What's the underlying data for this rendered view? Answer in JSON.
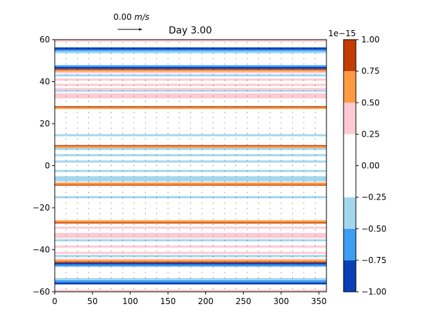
{
  "chart_data": {
    "type": "heatmap",
    "title": "Day 3.00",
    "xlabel": "",
    "ylabel": "",
    "xlim": [
      0,
      360
    ],
    "ylim": [
      -60,
      60
    ],
    "xticks": [
      0,
      50,
      100,
      150,
      200,
      250,
      300,
      350
    ],
    "yticks": [
      -60,
      -40,
      -20,
      0,
      20,
      40,
      60
    ],
    "x_tick_labels": [
      "0",
      "50",
      "100",
      "150",
      "200",
      "250",
      "300",
      "350"
    ],
    "y_tick_labels": [
      "−60",
      "−40",
      "−20",
      "0",
      "20",
      "40",
      "60"
    ],
    "quiver_key": {
      "label": "0.00 m/s",
      "value_text": "0.00",
      "unit_text": "m/s"
    },
    "colorbar": {
      "levels": [
        -1.0,
        -0.75,
        -0.5,
        -0.25,
        0.25,
        0.5,
        0.75,
        1.0
      ],
      "tick_values": [
        -1.0,
        -0.75,
        -0.5,
        -0.25,
        0.0,
        0.25,
        0.5,
        0.75,
        1.0
      ],
      "tick_labels": [
        "−1.00",
        "−0.75",
        "−0.50",
        "−0.25",
        "0.00",
        "0.25",
        "0.50",
        "0.75",
        "1.00"
      ],
      "colors": [
        "#0b3fb8",
        "#3d9df0",
        "#a3d7ee",
        "#ffffff",
        "#fecad2",
        "#fe9a40",
        "#c43d00"
      ],
      "offset_label": "1e−15"
    },
    "bands": [
      {
        "y0": -60,
        "y1": -59,
        "level": 4
      },
      {
        "y0": -56.5,
        "y1": -55.5,
        "level": 0
      },
      {
        "y0": -55.5,
        "y1": -54.5,
        "level": 1
      },
      {
        "y0": -54.5,
        "y1": -53.5,
        "level": 2
      },
      {
        "y0": -48,
        "y1": -47,
        "level": 1
      },
      {
        "y0": -47,
        "y1": -46.2,
        "level": 0
      },
      {
        "y0": -46.2,
        "y1": -45.7,
        "level": 6
      },
      {
        "y0": -45.7,
        "y1": -44.8,
        "level": 5
      },
      {
        "y0": -44.8,
        "y1": -44.2,
        "level": 4
      },
      {
        "y0": -43.5,
        "y1": -42.5,
        "level": 2
      },
      {
        "y0": -42,
        "y1": -41,
        "level": 4
      },
      {
        "y0": -39,
        "y1": -38,
        "level": 4
      },
      {
        "y0": -36,
        "y1": -35,
        "level": 2
      },
      {
        "y0": -34.5,
        "y1": -32,
        "level": 4
      },
      {
        "y0": -30,
        "y1": -29,
        "level": 4
      },
      {
        "y0": -27.5,
        "y1": -27,
        "level": 6
      },
      {
        "y0": -27,
        "y1": -26,
        "level": 5
      },
      {
        "y0": -15.5,
        "y1": -14.5,
        "level": 2
      },
      {
        "y0": -9.5,
        "y1": -9,
        "level": 6
      },
      {
        "y0": -9,
        "y1": -8,
        "level": 5
      },
      {
        "y0": -7.5,
        "y1": -5,
        "level": 2
      },
      {
        "y0": -3,
        "y1": -2,
        "level": 2
      },
      {
        "y0": 1.5,
        "y1": 2.5,
        "level": 2
      },
      {
        "y0": 4.5,
        "y1": 5.5,
        "level": 2
      },
      {
        "y0": 7.5,
        "y1": 8.5,
        "level": 2
      },
      {
        "y0": 8.5,
        "y1": 9.3,
        "level": 5
      },
      {
        "y0": 9.3,
        "y1": 9.8,
        "level": 6
      },
      {
        "y0": 14,
        "y1": 15,
        "level": 2
      },
      {
        "y0": 27,
        "y1": 27.8,
        "level": 5
      },
      {
        "y0": 27.8,
        "y1": 28.3,
        "level": 6
      },
      {
        "y0": 32,
        "y1": 34.5,
        "level": 4
      },
      {
        "y0": 36,
        "y1": 37,
        "level": 4
      },
      {
        "y0": 35.2,
        "y1": 36,
        "level": 2
      },
      {
        "y0": 38,
        "y1": 39,
        "level": 4
      },
      {
        "y0": 40.5,
        "y1": 41.5,
        "level": 4
      },
      {
        "y0": 42.5,
        "y1": 43.5,
        "level": 2
      },
      {
        "y0": 44,
        "y1": 44.8,
        "level": 4
      },
      {
        "y0": 44.8,
        "y1": 45.6,
        "level": 5
      },
      {
        "y0": 45.6,
        "y1": 46.1,
        "level": 6
      },
      {
        "y0": 46.1,
        "y1": 47,
        "level": 0
      },
      {
        "y0": 47,
        "y1": 47.8,
        "level": 1
      },
      {
        "y0": 53.5,
        "y1": 54.5,
        "level": 2
      },
      {
        "y0": 54.5,
        "y1": 55.3,
        "level": 1
      },
      {
        "y0": 55.3,
        "y1": 56.3,
        "level": 0
      },
      {
        "y0": 59,
        "y1": 60,
        "level": 4
      }
    ]
  }
}
